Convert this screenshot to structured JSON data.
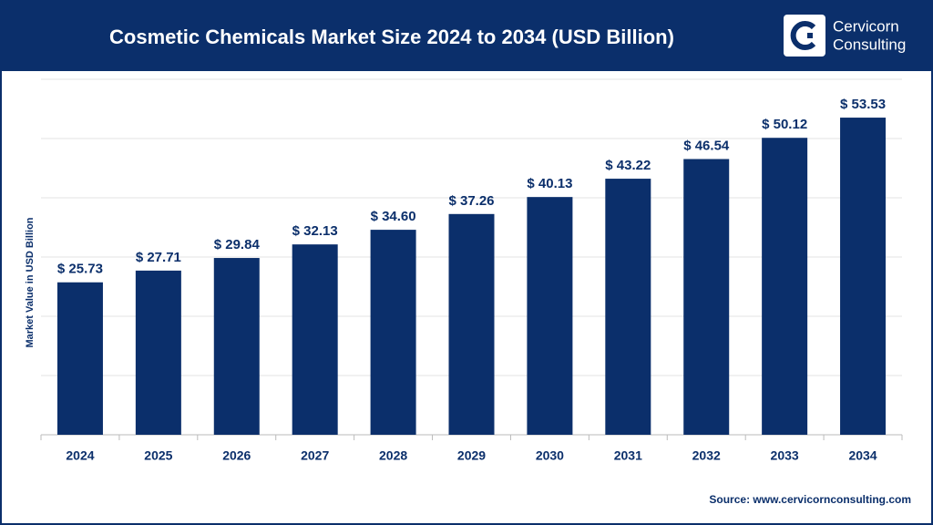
{
  "chart_data": {
    "type": "bar",
    "title": "Cosmetic Chemicals Market Size 2024 to 2034 (USD Billion)",
    "y_label": "Market Value in USD Billion",
    "categories": [
      "2024",
      "2025",
      "2026",
      "2027",
      "2028",
      "2029",
      "2030",
      "2031",
      "2032",
      "2033",
      "2034"
    ],
    "values": [
      25.73,
      27.71,
      29.84,
      32.13,
      34.6,
      37.26,
      40.13,
      43.22,
      46.54,
      50.12,
      53.53
    ],
    "value_labels": [
      "$ 25.73",
      "$ 27.71",
      "$ 29.84",
      "$ 32.13",
      "$ 34.60",
      "$ 37.26",
      "$ 40.13",
      "$ 43.22",
      "$ 46.54",
      "$ 50.12",
      "$ 53.53"
    ],
    "color": "#0b2f6b",
    "ylim": [
      0,
      60
    ],
    "ygrid": [
      10,
      20,
      30,
      40,
      50,
      60
    ],
    "grid": true,
    "source": "Source: www.cervicornconsulting.com"
  },
  "brand": {
    "line1": "Cervicorn",
    "line2": "Consulting"
  }
}
